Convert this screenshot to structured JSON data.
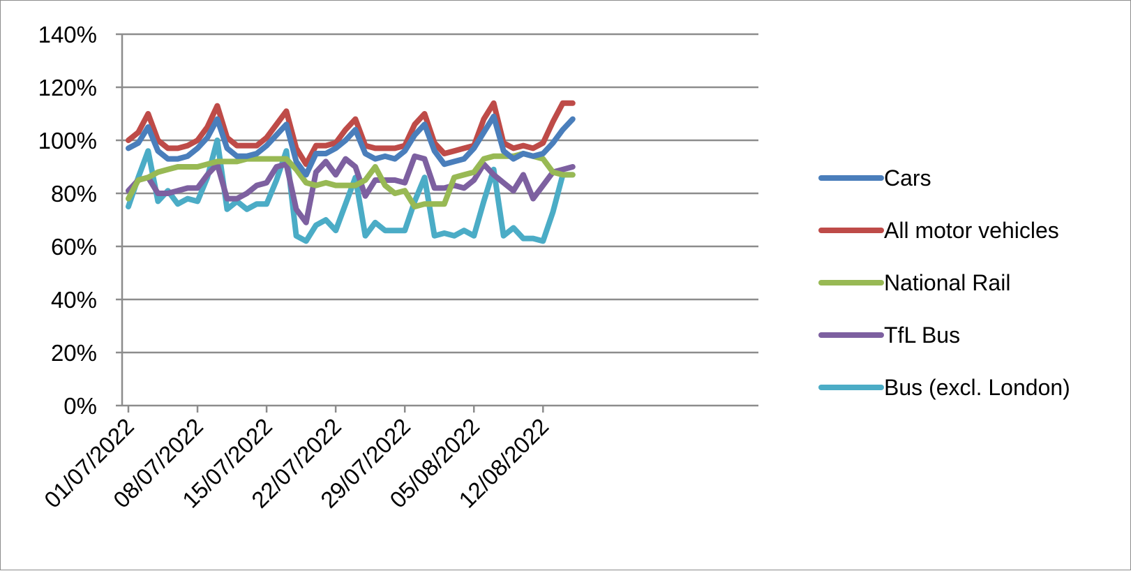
{
  "chart_data": {
    "type": "line",
    "x_tick_labels": [
      "01/07/2022",
      "08/07/2022",
      "15/07/2022",
      "22/07/2022",
      "29/07/2022",
      "05/08/2022",
      "12/08/2022"
    ],
    "x": [
      "01/07/2022",
      "02/07/2022",
      "03/07/2022",
      "04/07/2022",
      "05/07/2022",
      "06/07/2022",
      "07/07/2022",
      "08/07/2022",
      "09/07/2022",
      "10/07/2022",
      "11/07/2022",
      "12/07/2022",
      "13/07/2022",
      "14/07/2022",
      "15/07/2022",
      "16/07/2022",
      "17/07/2022",
      "18/07/2022",
      "19/07/2022",
      "20/07/2022",
      "21/07/2022",
      "22/07/2022",
      "23/07/2022",
      "24/07/2022",
      "25/07/2022",
      "26/07/2022",
      "27/07/2022",
      "28/07/2022",
      "29/07/2022",
      "30/07/2022",
      "31/07/2022",
      "01/08/2022",
      "02/08/2022",
      "03/08/2022",
      "04/08/2022",
      "05/08/2022",
      "06/08/2022",
      "07/08/2022",
      "08/08/2022",
      "09/08/2022",
      "10/08/2022",
      "11/08/2022",
      "12/08/2022",
      "13/08/2022",
      "14/08/2022",
      "15/08/2022"
    ],
    "y_ticks": [
      "0%",
      "20%",
      "40%",
      "60%",
      "80%",
      "100%",
      "120%",
      "140%"
    ],
    "ylim": [
      0,
      140
    ],
    "grid": true,
    "legend_position": "right",
    "series": [
      {
        "name": "Cars",
        "color": "#4a7ebb",
        "values": [
          97,
          99,
          105,
          96,
          93,
          93,
          94,
          97,
          101,
          108,
          97,
          94,
          94,
          95,
          98,
          102,
          106,
          92,
          87,
          95,
          95,
          97,
          100,
          104,
          95,
          93,
          94,
          93,
          96,
          102,
          106,
          96,
          91,
          92,
          93,
          97,
          103,
          109,
          96,
          93,
          95,
          94,
          95,
          99,
          104,
          108
        ]
      },
      {
        "name": "All motor vehicles",
        "color": "#be4b48",
        "values": [
          100,
          103,
          110,
          100,
          97,
          97,
          98,
          100,
          105,
          113,
          101,
          98,
          98,
          98,
          101,
          106,
          111,
          97,
          91,
          98,
          98,
          99,
          104,
          108,
          98,
          97,
          97,
          97,
          98,
          106,
          110,
          99,
          95,
          96,
          97,
          98,
          108,
          114,
          99,
          97,
          98,
          97,
          99,
          107,
          114,
          114
        ]
      },
      {
        "name": "National Rail",
        "color": "#98b954",
        "values": [
          78,
          85,
          86,
          88,
          89,
          90,
          90,
          90,
          91,
          92,
          92,
          92,
          93,
          93,
          93,
          93,
          93,
          89,
          84,
          83,
          84,
          83,
          83,
          83,
          85,
          90,
          83,
          80,
          81,
          75,
          76,
          76,
          76,
          86,
          87,
          88,
          93,
          94,
          94,
          94,
          95,
          94,
          93,
          88,
          87,
          87
        ]
      },
      {
        "name": "TfL Bus",
        "color": "#7d60a0",
        "values": [
          81,
          85,
          86,
          80,
          80,
          81,
          82,
          82,
          87,
          91,
          78,
          78,
          80,
          83,
          84,
          90,
          91,
          74,
          69,
          88,
          92,
          87,
          93,
          90,
          79,
          85,
          85,
          85,
          84,
          94,
          93,
          82,
          82,
          83,
          82,
          85,
          91,
          87,
          84,
          81,
          87,
          78,
          83,
          88,
          89,
          90
        ]
      },
      {
        "name": "Bus (excl. London)",
        "color": "#4bacc6",
        "values": [
          75,
          86,
          96,
          77,
          81,
          76,
          78,
          77,
          86,
          100,
          74,
          77,
          74,
          76,
          76,
          85,
          96,
          64,
          62,
          68,
          70,
          66,
          76,
          86,
          64,
          69,
          66,
          66,
          66,
          77,
          86,
          64,
          65,
          64,
          66,
          64,
          77,
          89,
          64,
          67,
          63,
          63,
          62,
          73,
          87,
          87
        ]
      }
    ]
  }
}
